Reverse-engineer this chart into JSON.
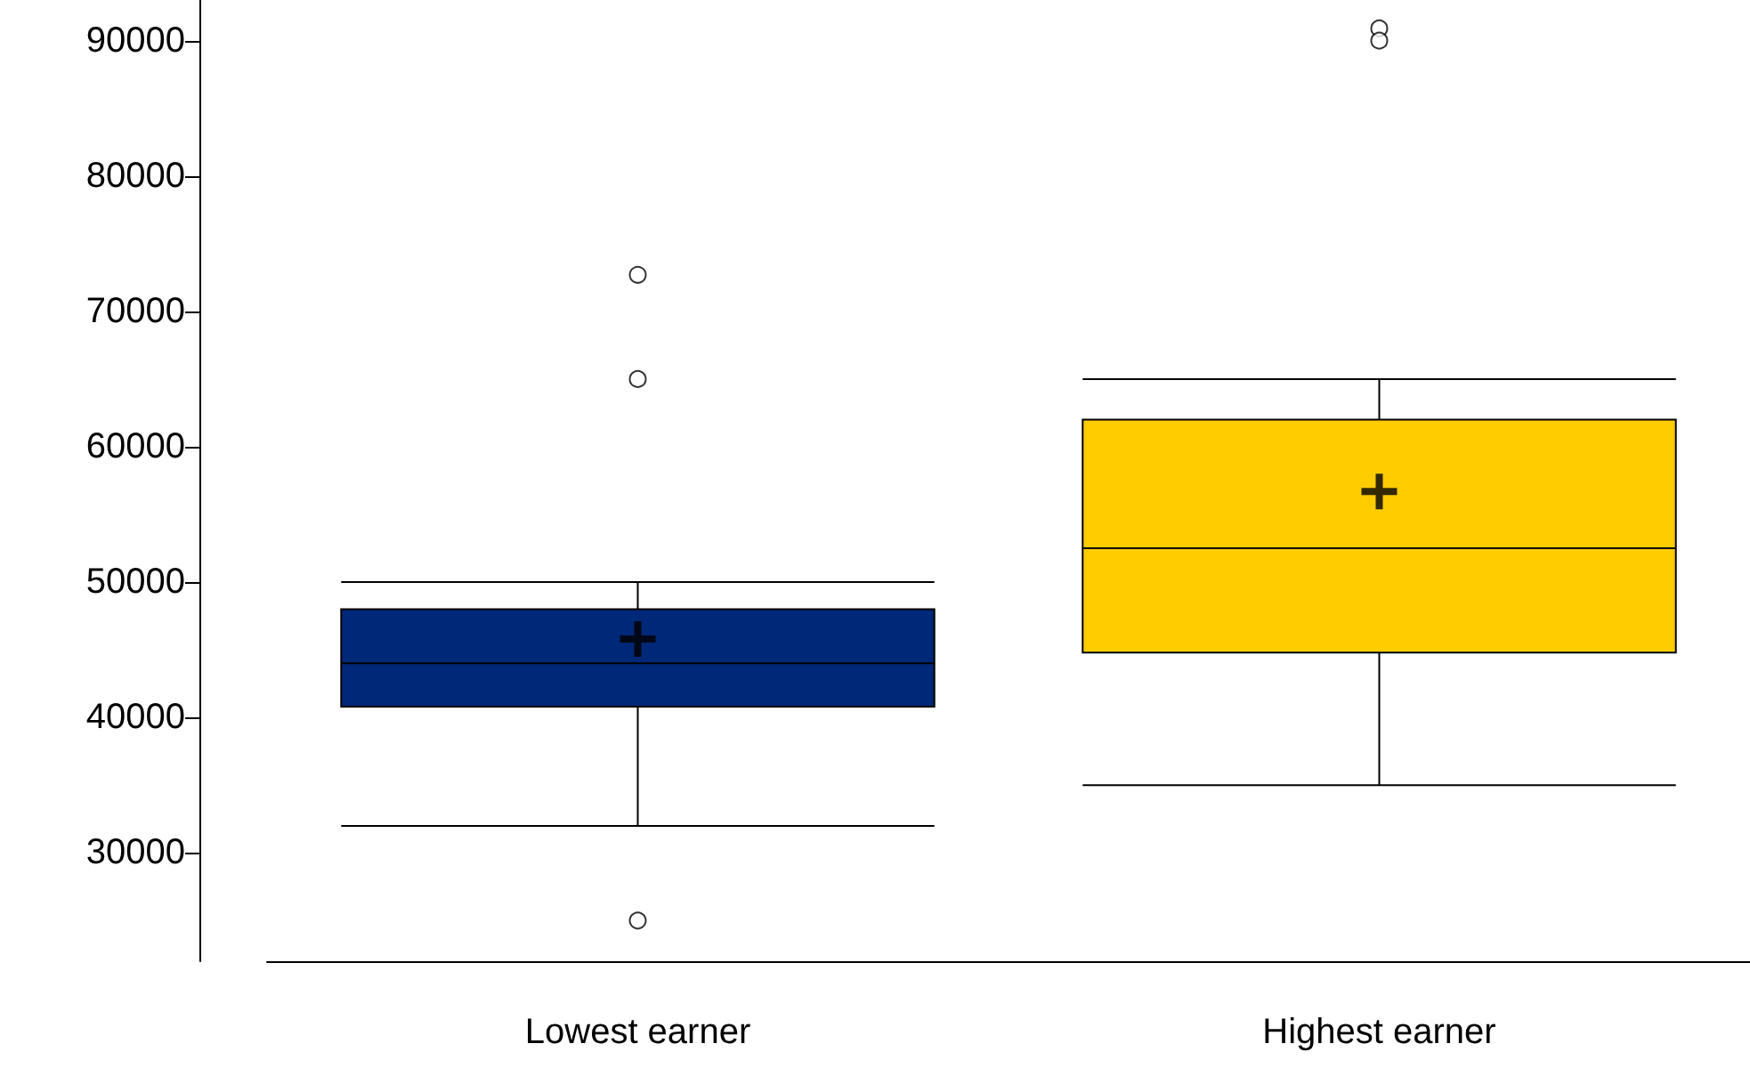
{
  "chart_data": {
    "type": "box",
    "categories": [
      "Lowest earner",
      "Highest earner"
    ],
    "colors": [
      "#002878",
      "#ffcc00"
    ],
    "boxes": [
      {
        "low": 32000,
        "q1": 40800,
        "median": 44000,
        "q3": 48000,
        "high": 50000,
        "mean": 45800,
        "outliers": [
          72700,
          65000,
          25000
        ]
      },
      {
        "low": 35000,
        "q1": 44800,
        "median": 52500,
        "q3": 62000,
        "high": 65000,
        "mean": 56700,
        "outliers": [
          90900,
          90000
        ]
      }
    ],
    "ylim": [
      22000,
      93000
    ],
    "yticks": [
      30000,
      40000,
      50000,
      60000,
      70000,
      80000,
      90000
    ],
    "grid": false
  }
}
